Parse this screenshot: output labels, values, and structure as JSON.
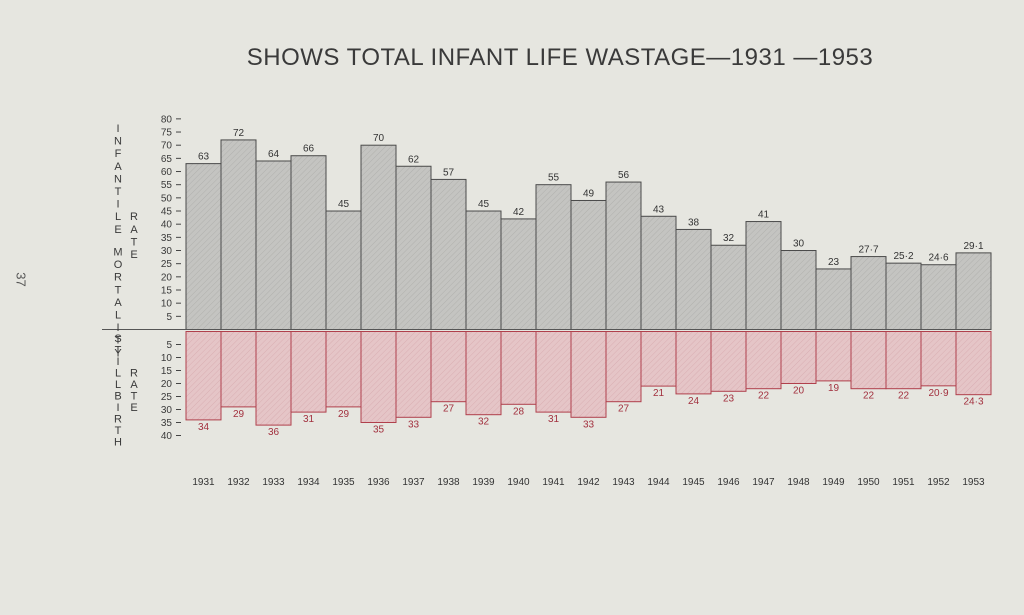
{
  "page_number": "37",
  "chart_data": {
    "type": "bar",
    "title": "SHOWS TOTAL INFANT LIFE WASTAGE—1931 —1953",
    "categories": [
      "1931",
      "1932",
      "1933",
      "1934",
      "1935",
      "1936",
      "1937",
      "1938",
      "1939",
      "1940",
      "1941",
      "1942",
      "1943",
      "1944",
      "1945",
      "1946",
      "1947",
      "1948",
      "1949",
      "1950",
      "1951",
      "1952",
      "1953"
    ],
    "series": [
      {
        "name": "INFANTILE MORTALITY RATE",
        "values": [
          63,
          72,
          64,
          66,
          45,
          70,
          62,
          57,
          45,
          42,
          55,
          49,
          56,
          43,
          38,
          32,
          41,
          30,
          23,
          27.7,
          25.2,
          24.6,
          29.1
        ],
        "labels": [
          "63",
          "72",
          "64",
          "66",
          "45",
          "70",
          "62",
          "57",
          "45",
          "42",
          "55",
          "49",
          "56",
          "43",
          "38",
          "32",
          "41",
          "30",
          "23",
          "27·7",
          "25·2",
          "24·6",
          "29·1"
        ],
        "axis_label": "INFANTILE MORTALITY RATE",
        "ylim": [
          0,
          80
        ],
        "ticks": [
          5,
          10,
          15,
          20,
          25,
          30,
          35,
          40,
          45,
          50,
          55,
          60,
          65,
          70,
          75,
          80
        ],
        "color": "#c4c4c1"
      },
      {
        "name": "STILLBIRTH RATE",
        "values": [
          34,
          29,
          36,
          31,
          29,
          35,
          33,
          27,
          32,
          28,
          31,
          33,
          27,
          21,
          24,
          23,
          22,
          20,
          19,
          22,
          22,
          20.9,
          24.3
        ],
        "labels": [
          "34",
          "29",
          "36",
          "31",
          "29",
          "35",
          "33",
          "27",
          "32",
          "28",
          "31",
          "33",
          "27",
          "21",
          "24",
          "23",
          "22",
          "20",
          "19",
          "22",
          "22",
          "20·9",
          "24·3"
        ],
        "axis_label": "STILLBIRTH RATE",
        "ylim": [
          0,
          40
        ],
        "ticks": [
          5,
          10,
          15,
          20,
          25,
          30,
          35,
          40
        ],
        "color": "#e5c5c7"
      }
    ]
  }
}
